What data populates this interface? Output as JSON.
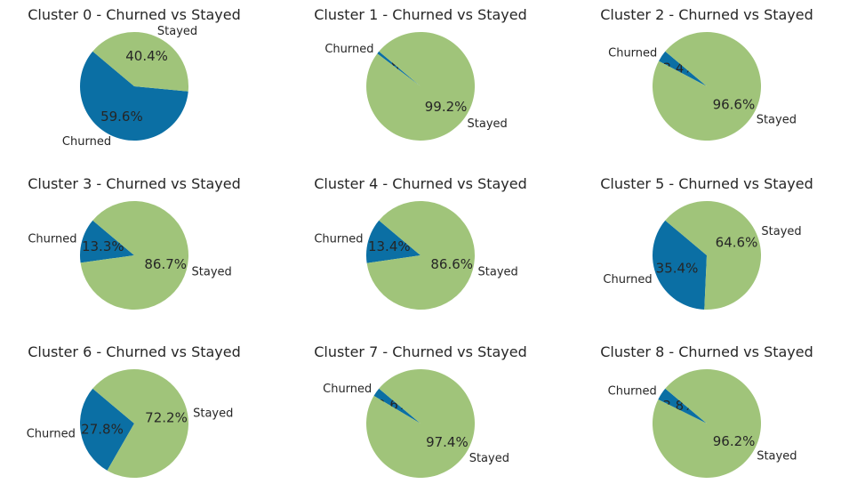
{
  "colors": {
    "churned": "#0b6fa4",
    "stayed": "#a0c47a"
  },
  "chart_data": [
    {
      "type": "pie",
      "title": "Cluster 0 - Churned vs Stayed",
      "labels": [
        "Churned",
        "Stayed"
      ],
      "values": [
        59.6,
        40.4
      ],
      "autopct": [
        "59.6%",
        "40.4%"
      ]
    },
    {
      "type": "pie",
      "title": "Cluster 1 - Churned vs Stayed",
      "labels": [
        "Churned",
        "Stayed"
      ],
      "values": [
        0.8,
        99.2
      ],
      "autopct": [
        "0.8%",
        "99.2%"
      ]
    },
    {
      "type": "pie",
      "title": "Cluster 2 - Churned vs Stayed",
      "labels": [
        "Churned",
        "Stayed"
      ],
      "values": [
        3.4,
        96.6
      ],
      "autopct": [
        "3.4%",
        "96.6%"
      ]
    },
    {
      "type": "pie",
      "title": "Cluster 3 - Churned vs Stayed",
      "labels": [
        "Churned",
        "Stayed"
      ],
      "values": [
        13.3,
        86.7
      ],
      "autopct": [
        "13.3%",
        "86.7%"
      ]
    },
    {
      "type": "pie",
      "title": "Cluster 4 - Churned vs Stayed",
      "labels": [
        "Churned",
        "Stayed"
      ],
      "values": [
        13.4,
        86.6
      ],
      "autopct": [
        "13.4%",
        "86.6%"
      ]
    },
    {
      "type": "pie",
      "title": "Cluster 5 - Churned vs Stayed",
      "labels": [
        "Churned",
        "Stayed"
      ],
      "values": [
        35.4,
        64.6
      ],
      "autopct": [
        "35.4%",
        "64.6%"
      ]
    },
    {
      "type": "pie",
      "title": "Cluster 6 - Churned vs Stayed",
      "labels": [
        "Churned",
        "Stayed"
      ],
      "values": [
        27.8,
        72.2
      ],
      "autopct": [
        "27.8%",
        "72.2%"
      ]
    },
    {
      "type": "pie",
      "title": "Cluster 7 - Churned vs Stayed",
      "labels": [
        "Churned",
        "Stayed"
      ],
      "values": [
        2.6,
        97.4
      ],
      "autopct": [
        "2.6%",
        "97.4%"
      ]
    },
    {
      "type": "pie",
      "title": "Cluster 8 - Churned vs Stayed",
      "labels": [
        "Churned",
        "Stayed"
      ],
      "values": [
        3.8,
        96.2
      ],
      "autopct": [
        "3.8%",
        "96.2%"
      ]
    }
  ]
}
